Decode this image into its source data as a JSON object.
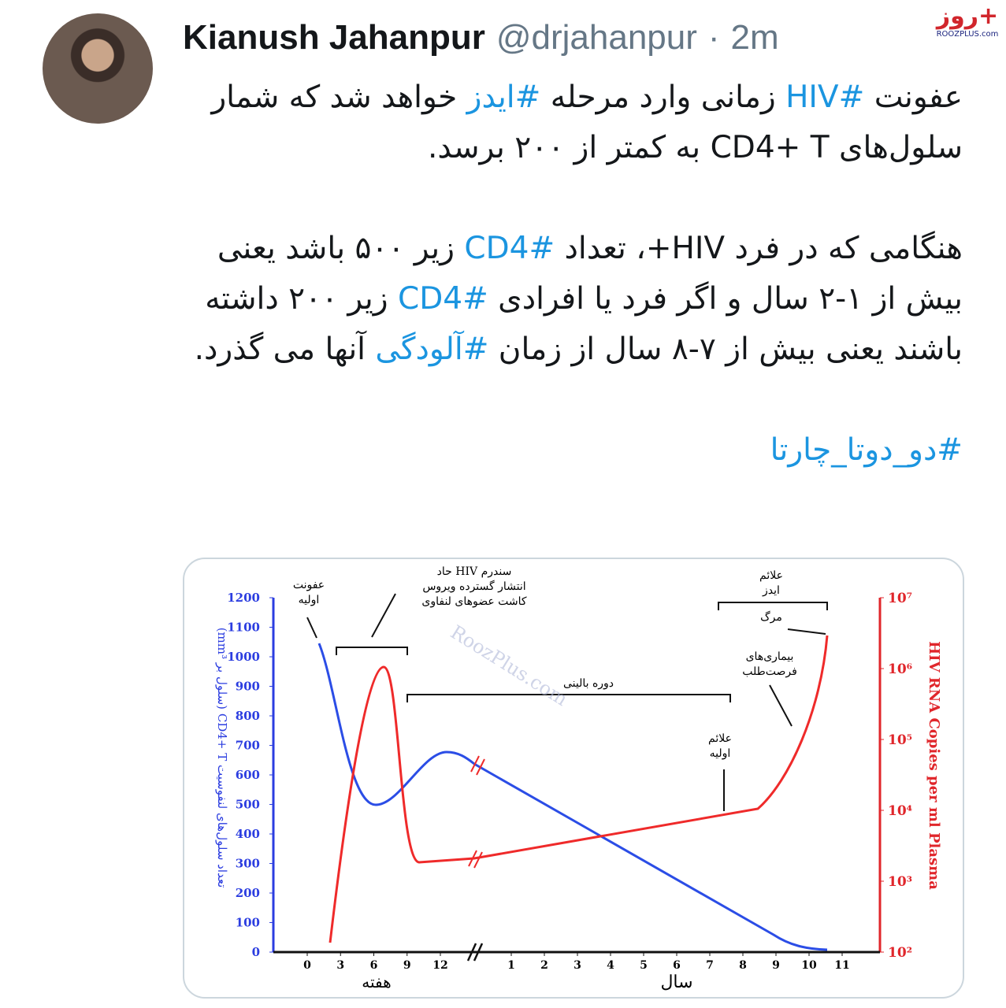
{
  "logo": {
    "mark": "روز+",
    "site": "ROOZPLUS.com"
  },
  "tweet": {
    "name": "Kianush Jahanpur",
    "handle": "@drjahanpur",
    "separator": "·",
    "time": "2m",
    "paragraphs": [
      [
        "عفونت ",
        {
          "hashtag": "#HIV"
        },
        " زمانی وارد مرحله ",
        {
          "hashtag": "#ایدز"
        },
        " خواهد شد که شمار سلول‌های CD4+ T به کمتر از ۲۰۰ برسد."
      ],
      [
        "هنگامی که در فرد HIV+، تعداد ",
        {
          "hashtag": "#CD4"
        },
        " زیر ۵۰۰ باشد یعنی بیش از ۱-۲ سال و اگر فرد یا افرادی ",
        {
          "hashtag": "#CD4"
        },
        " زیر ۲۰۰ داشته باشند یعنی بیش از ۷-۸ سال از زمان ",
        {
          "hashtag": "#آلودگی"
        },
        " آنها می گذرد."
      ],
      [
        {
          "hashtag": "#دو_دوتا_چارتا"
        }
      ]
    ]
  },
  "chart": {
    "y_title": "تعداد سلول‌های لنفوسیت CD4+ T (سلول بر mm³)",
    "y2_title": "HIV RNA Copies per ml Plasma",
    "ylim": [
      0,
      1200
    ],
    "yticks": [
      0,
      100,
      200,
      300,
      400,
      500,
      600,
      700,
      800,
      900,
      1000,
      1100,
      1200
    ],
    "y2lim": [
      100,
      10000000
    ],
    "y2ticks": [
      {
        "value": 100,
        "label": "10²"
      },
      {
        "value": 1000,
        "label": "10³"
      },
      {
        "value": 10000,
        "label": "10⁴"
      },
      {
        "value": 100000,
        "label": "10⁵"
      },
      {
        "value": 1000000,
        "label": "10⁶"
      },
      {
        "value": 10000000,
        "label": "10⁷"
      }
    ],
    "weeks_title": "هفته",
    "weeks": [
      0,
      3,
      6,
      9,
      12
    ],
    "years_title": "سال",
    "years": [
      1,
      2,
      3,
      4,
      5,
      6,
      7,
      8,
      9,
      10,
      11
    ],
    "annotations": [
      "عفونت اولیه",
      "سندرم HIV حاد انتشار گسترده ویروس کاشت عضوهای لنفاوی",
      "دوره بالینی",
      "علائم ایدز",
      "مرگ",
      "بیماری‌های فرصت‌طلب",
      "علائم اولیه"
    ],
    "watermark": "RoozPlus.com"
  }
}
